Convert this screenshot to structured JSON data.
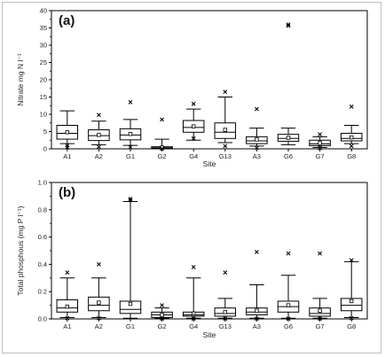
{
  "chart_data": [
    {
      "type": "box",
      "panel_label": "(a)",
      "xlabel": "Site",
      "ylabel": "Nitrate mg N l⁻¹",
      "ylim": [
        0,
        40
      ],
      "yticks": [
        "0",
        "5",
        "10",
        "15",
        "20",
        "25",
        "30",
        "35",
        "40"
      ],
      "categories": [
        "A1",
        "A2",
        "G1",
        "G2",
        "G4",
        "G13",
        "A3",
        "G6",
        "G7",
        "G8"
      ],
      "boxes": [
        {
          "whisker_low": 1.5,
          "q1": 2.8,
          "median": 4.5,
          "q3": 6.8,
          "whisker_high": 11.0,
          "mean": 4.8,
          "outliers": [
            1.0,
            0.4
          ]
        },
        {
          "whisker_low": 1.2,
          "q1": 2.4,
          "median": 3.8,
          "q3": 5.5,
          "whisker_high": 8.0,
          "mean": 4.0,
          "outliers": [
            9.8,
            0.6
          ]
        },
        {
          "whisker_low": 1.0,
          "q1": 2.6,
          "median": 4.0,
          "q3": 5.8,
          "whisker_high": 8.5,
          "mean": 4.3,
          "outliers": [
            13.5,
            0.5
          ]
        },
        {
          "whisker_low": 0.1,
          "q1": 0.2,
          "median": 0.3,
          "q3": 0.6,
          "whisker_high": 2.8,
          "mean": 0.4,
          "outliers": [
            8.5,
            0.05
          ]
        },
        {
          "whisker_low": 2.5,
          "q1": 4.8,
          "median": 6.2,
          "q3": 8.2,
          "whisker_high": 11.5,
          "mean": 6.5,
          "outliers": [
            13.0,
            3.0
          ]
        },
        {
          "whisker_low": 1.8,
          "q1": 3.0,
          "median": 4.8,
          "q3": 7.5,
          "whisker_high": 15.0,
          "mean": 5.5,
          "outliers": [
            16.5,
            0.8
          ]
        },
        {
          "whisker_low": 0.8,
          "q1": 1.5,
          "median": 2.3,
          "q3": 3.5,
          "whisker_high": 6.0,
          "mean": 2.7,
          "outliers": [
            11.5,
            0.3
          ]
        },
        {
          "whisker_low": 1.2,
          "q1": 2.2,
          "median": 3.0,
          "q3": 4.2,
          "whisker_high": 6.0,
          "mean": 3.2,
          "outliers": [
            36.0,
            35.6
          ]
        },
        {
          "whisker_low": 0.4,
          "q1": 0.9,
          "median": 1.4,
          "q3": 2.5,
          "whisker_high": 3.5,
          "mean": 1.7,
          "outliers": [
            4.2,
            0.2
          ]
        },
        {
          "whisker_low": 1.5,
          "q1": 2.3,
          "median": 3.0,
          "q3": 4.5,
          "whisker_high": 6.8,
          "mean": 3.3,
          "outliers": [
            12.2,
            0.8
          ]
        }
      ]
    },
    {
      "type": "box",
      "panel_label": "(b)",
      "xlabel": "Site",
      "ylabel": "Total phosphous (mg P l⁻¹)",
      "ylim": [
        0,
        1.0
      ],
      "yticks": [
        "0.0",
        "0.2",
        "0.4",
        "0.6",
        "0.8",
        "1.0"
      ],
      "categories": [
        "A1",
        "A2",
        "G1",
        "G2",
        "G4",
        "G13",
        "A3",
        "G6",
        "G7",
        "G8"
      ],
      "boxes": [
        {
          "whisker_low": 0.01,
          "q1": 0.05,
          "median": 0.08,
          "q3": 0.14,
          "whisker_high": 0.3,
          "mean": 0.09,
          "outliers": [
            0.34,
            0.005
          ]
        },
        {
          "whisker_low": 0.01,
          "q1": 0.06,
          "median": 0.1,
          "q3": 0.16,
          "whisker_high": 0.3,
          "mean": 0.12,
          "outliers": [
            0.4,
            0.005
          ]
        },
        {
          "whisker_low": 0.005,
          "q1": 0.04,
          "median": 0.07,
          "q3": 0.13,
          "whisker_high": 0.86,
          "mean": 0.11,
          "outliers": [
            0.88,
            0.87
          ]
        },
        {
          "whisker_low": 0.005,
          "q1": 0.01,
          "median": 0.03,
          "q3": 0.05,
          "whisker_high": 0.08,
          "mean": 0.03,
          "outliers": [
            0.1,
            0.002
          ]
        },
        {
          "whisker_low": 0.005,
          "q1": 0.02,
          "median": 0.03,
          "q3": 0.05,
          "whisker_high": 0.3,
          "mean": 0.04,
          "outliers": [
            0.38,
            0.002
          ]
        },
        {
          "whisker_low": 0.005,
          "q1": 0.02,
          "median": 0.04,
          "q3": 0.08,
          "whisker_high": 0.15,
          "mean": 0.05,
          "outliers": [
            0.34,
            0.002
          ]
        },
        {
          "whisker_low": 0.005,
          "q1": 0.03,
          "median": 0.05,
          "q3": 0.08,
          "whisker_high": 0.25,
          "mean": 0.06,
          "outliers": [
            0.49,
            0.002
          ]
        },
        {
          "whisker_low": 0.005,
          "q1": 0.05,
          "median": 0.09,
          "q3": 0.13,
          "whisker_high": 0.32,
          "mean": 0.1,
          "outliers": [
            0.48,
            0.002
          ]
        },
        {
          "whisker_low": 0.005,
          "q1": 0.02,
          "median": 0.04,
          "q3": 0.08,
          "whisker_high": 0.15,
          "mean": 0.06,
          "outliers": [
            0.48,
            0.002
          ]
        },
        {
          "whisker_low": 0.01,
          "q1": 0.06,
          "median": 0.1,
          "q3": 0.15,
          "whisker_high": 0.42,
          "mean": 0.13,
          "outliers": [
            0.43,
            0.005
          ]
        }
      ]
    }
  ]
}
